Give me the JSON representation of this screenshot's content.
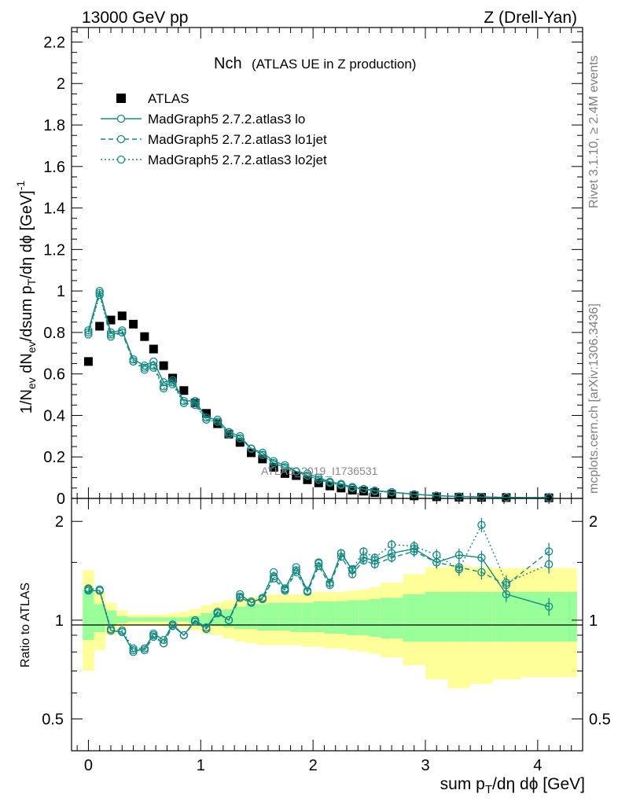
{
  "header": {
    "left": "13000 GeV pp",
    "right": "Z (Drell-Yan)"
  },
  "side_labels": {
    "rivet": "Rivet 3.1.10, ≥ 2.4M events",
    "mcplots": "mcplots.cern.ch [arXiv:1306.3436]"
  },
  "analysis_tag": "ATLAS_2019_I1736531",
  "colors": {
    "data": "#000000",
    "mc": "#138a85",
    "band_inner": "#99ff99",
    "band_outer": "#ffff99"
  },
  "chart_data": [
    {
      "type": "scatter",
      "title_main": "Nch",
      "title_sub": "(ATLAS UE in Z production)",
      "xlabel": "",
      "ylabel": "1/N_ev dN_ev/dsum p_T/dη dϕ [GeV]^-1",
      "xlim": [
        -0.15,
        4.4
      ],
      "ylim": [
        0,
        2.27
      ],
      "yticks": [
        "0",
        "0.2",
        "0.4",
        "0.6",
        "0.8",
        "1",
        "1.2",
        "1.4",
        "1.6",
        "1.8",
        "2",
        "2.2"
      ],
      "ytick_values": [
        0,
        0.2,
        0.4,
        0.6,
        0.8,
        1,
        1.2,
        1.4,
        1.6,
        1.8,
        2,
        2.2
      ],
      "legend": "top-left",
      "x": [
        0.0,
        0.1,
        0.2,
        0.3,
        0.4,
        0.5,
        0.58,
        0.67,
        0.75,
        0.85,
        0.95,
        1.05,
        1.15,
        1.25,
        1.35,
        1.45,
        1.55,
        1.65,
        1.75,
        1.85,
        1.95,
        2.05,
        2.15,
        2.25,
        2.35,
        2.45,
        2.55,
        2.7,
        2.9,
        3.1,
        3.3,
        3.5,
        3.72,
        4.1
      ],
      "series": [
        {
          "name": "ATLAS",
          "style": "data",
          "values": [
            0.66,
            0.83,
            0.86,
            0.88,
            0.84,
            0.78,
            0.72,
            0.64,
            0.58,
            0.52,
            0.46,
            0.41,
            0.36,
            0.31,
            0.27,
            0.22,
            0.19,
            0.15,
            0.12,
            0.11,
            0.09,
            0.075,
            0.06,
            0.05,
            0.04,
            0.035,
            0.028,
            0.02,
            0.012,
            0.008,
            0.006,
            0.005,
            0.004,
            0.003
          ]
        },
        {
          "name": "MadGraph5 2.7.2.atlas3 lo",
          "style": "solid",
          "values": [
            0.81,
            1.0,
            0.8,
            0.81,
            0.67,
            0.64,
            0.66,
            0.56,
            0.57,
            0.47,
            0.47,
            0.39,
            0.38,
            0.32,
            0.3,
            0.24,
            0.22,
            0.18,
            0.16,
            0.13,
            0.12,
            0.1,
            0.08,
            0.07,
            0.055,
            0.045,
            0.038,
            0.03,
            0.02,
            0.013,
            0.009,
            0.007,
            0.005,
            0.003
          ]
        },
        {
          "name": "MadGraph5 2.7.2.atlas3 lo1jet",
          "style": "dashed",
          "values": [
            0.8,
            0.99,
            0.79,
            0.8,
            0.66,
            0.63,
            0.64,
            0.54,
            0.56,
            0.46,
            0.46,
            0.38,
            0.37,
            0.31,
            0.29,
            0.24,
            0.21,
            0.17,
            0.15,
            0.13,
            0.11,
            0.09,
            0.08,
            0.065,
            0.055,
            0.045,
            0.036,
            0.03,
            0.02,
            0.013,
            0.009,
            0.007,
            0.005,
            0.004
          ]
        },
        {
          "name": "MadGraph5 2.7.2.atlas3 lo2jet",
          "style": "dotted",
          "values": [
            0.79,
            0.98,
            0.78,
            0.8,
            0.66,
            0.62,
            0.63,
            0.53,
            0.55,
            0.46,
            0.45,
            0.38,
            0.37,
            0.31,
            0.29,
            0.24,
            0.21,
            0.17,
            0.15,
            0.13,
            0.11,
            0.09,
            0.075,
            0.065,
            0.05,
            0.045,
            0.035,
            0.03,
            0.02,
            0.013,
            0.009,
            0.007,
            0.005,
            0.004
          ]
        }
      ]
    },
    {
      "type": "line",
      "xlabel": "sum p_T/dη dϕ [GeV]",
      "ylabel": "Ratio to ATLAS",
      "yscale": "log",
      "xlim": [
        -0.15,
        4.4
      ],
      "ylim": [
        0.4,
        2.35
      ],
      "xticks": [
        "0",
        "1",
        "2",
        "3",
        "4"
      ],
      "xtick_values": [
        0,
        1,
        2,
        3,
        4
      ],
      "yticks": [
        "0.5",
        "1",
        "2"
      ],
      "ytick_values": [
        0.5,
        1,
        2
      ],
      "x": [
        0.0,
        0.1,
        0.2,
        0.3,
        0.4,
        0.5,
        0.58,
        0.67,
        0.75,
        0.85,
        0.95,
        1.05,
        1.15,
        1.25,
        1.35,
        1.45,
        1.55,
        1.65,
        1.75,
        1.85,
        1.95,
        2.05,
        2.15,
        2.25,
        2.35,
        2.45,
        2.55,
        2.7,
        2.9,
        3.1,
        3.3,
        3.5,
        3.72,
        4.1
      ],
      "bands": {
        "bin_edges": [
          -0.05,
          0.05,
          0.15,
          0.25,
          0.35,
          0.45,
          0.55,
          0.62,
          0.71,
          0.8,
          0.9,
          1.0,
          1.1,
          1.2,
          1.3,
          1.4,
          1.5,
          1.6,
          1.7,
          1.8,
          1.9,
          2.0,
          2.1,
          2.2,
          2.3,
          2.4,
          2.5,
          2.6,
          2.8,
          3.0,
          3.2,
          3.4,
          3.6,
          3.85,
          4.35
        ],
        "inner_low": [
          0.87,
          0.92,
          0.96,
          0.98,
          0.99,
          0.99,
          0.99,
          0.99,
          0.99,
          0.99,
          0.98,
          0.97,
          0.96,
          0.95,
          0.94,
          0.94,
          0.93,
          0.93,
          0.93,
          0.92,
          0.92,
          0.92,
          0.91,
          0.91,
          0.9,
          0.9,
          0.89,
          0.88,
          0.86,
          0.86,
          0.86,
          0.86,
          0.86,
          0.86
        ],
        "inner_high": [
          1.24,
          1.12,
          1.07,
          1.03,
          1.02,
          1.02,
          1.02,
          1.02,
          1.02,
          1.02,
          1.03,
          1.05,
          1.07,
          1.08,
          1.1,
          1.12,
          1.12,
          1.13,
          1.13,
          1.13,
          1.13,
          1.14,
          1.14,
          1.14,
          1.15,
          1.15,
          1.16,
          1.17,
          1.2,
          1.22,
          1.22,
          1.22,
          1.22,
          1.22
        ],
        "outer_low": [
          0.7,
          0.81,
          0.9,
          0.95,
          0.97,
          0.97,
          0.97,
          0.96,
          0.96,
          0.95,
          0.93,
          0.91,
          0.9,
          0.88,
          0.86,
          0.85,
          0.84,
          0.84,
          0.84,
          0.84,
          0.83,
          0.83,
          0.82,
          0.82,
          0.81,
          0.8,
          0.79,
          0.77,
          0.73,
          0.66,
          0.62,
          0.64,
          0.66,
          0.67
        ],
        "outer_high": [
          1.42,
          1.22,
          1.13,
          1.07,
          1.04,
          1.04,
          1.04,
          1.04,
          1.05,
          1.06,
          1.08,
          1.11,
          1.13,
          1.15,
          1.17,
          1.18,
          1.19,
          1.2,
          1.2,
          1.2,
          1.21,
          1.22,
          1.22,
          1.22,
          1.23,
          1.24,
          1.26,
          1.3,
          1.38,
          1.45,
          1.47,
          1.45,
          1.44,
          1.44
        ]
      },
      "series": [
        {
          "name": "MadGraph5 2.7.2.atlas3 lo",
          "style": "solid",
          "values": [
            1.23,
            1.23,
            0.93,
            0.92,
            0.8,
            0.82,
            0.91,
            0.87,
            0.97,
            0.9,
            1.0,
            0.95,
            1.06,
            1.0,
            1.2,
            1.13,
            1.17,
            1.4,
            1.25,
            1.45,
            1.23,
            1.5,
            1.3,
            1.6,
            1.42,
            1.55,
            1.52,
            1.6,
            1.65,
            1.5,
            1.58,
            1.55,
            1.2,
            1.1
          ]
        },
        {
          "name": "MadGraph5 2.7.2.atlas3 lo1jet",
          "style": "dashed",
          "values": [
            1.24,
            1.23,
            0.93,
            0.92,
            0.81,
            0.81,
            0.89,
            0.85,
            0.96,
            0.9,
            0.99,
            0.94,
            1.05,
            1.0,
            1.17,
            1.13,
            1.16,
            1.34,
            1.23,
            1.4,
            1.22,
            1.46,
            1.28,
            1.56,
            1.38,
            1.52,
            1.48,
            1.55,
            1.62,
            1.5,
            1.45,
            1.4,
            1.28,
            1.62
          ]
        },
        {
          "name": "MadGraph5 2.7.2.atlas3 lo2jet",
          "style": "dotted",
          "values": [
            1.25,
            1.24,
            0.94,
            0.93,
            0.82,
            0.82,
            0.9,
            0.85,
            0.96,
            0.9,
            0.99,
            0.94,
            1.05,
            1.0,
            1.18,
            1.14,
            1.16,
            1.36,
            1.24,
            1.42,
            1.23,
            1.49,
            1.3,
            1.6,
            1.43,
            1.62,
            1.55,
            1.7,
            1.68,
            1.58,
            1.43,
            1.95,
            1.3,
            1.48
          ]
        }
      ]
    }
  ]
}
